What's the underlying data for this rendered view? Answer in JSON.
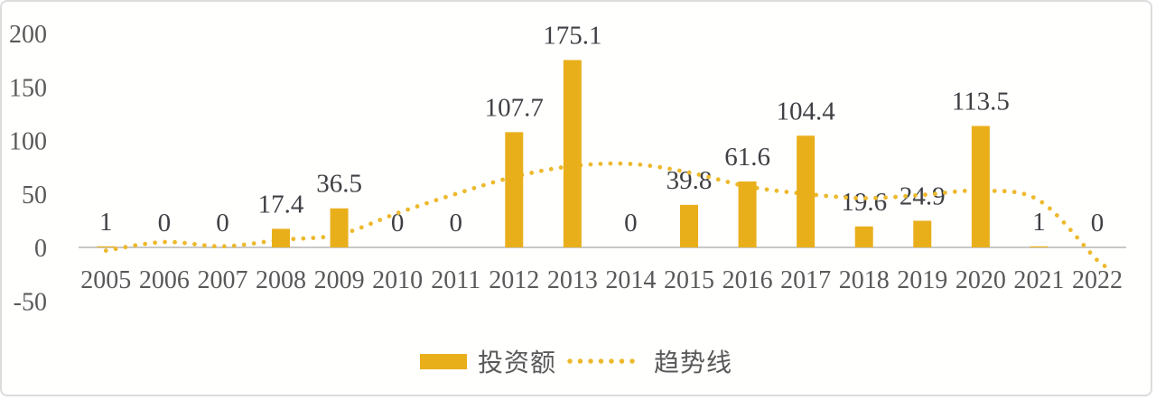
{
  "chart_data": {
    "type": "bar",
    "title": "",
    "xlabel": "",
    "ylabel": "",
    "categories": [
      "2005",
      "2006",
      "2007",
      "2008",
      "2009",
      "2010",
      "2011",
      "2012",
      "2013",
      "2014",
      "2015",
      "2016",
      "2017",
      "2018",
      "2019",
      "2020",
      "2021",
      "2022"
    ],
    "series": [
      {
        "name": "投资额",
        "type": "bar",
        "values": [
          1,
          0,
          0,
          17.4,
          36.5,
          0,
          0,
          107.7,
          175.1,
          0,
          39.8,
          61.6,
          104.4,
          19.6,
          24.9,
          113.5,
          1,
          0
        ],
        "data_labels": [
          "1",
          "0",
          "0",
          "17.4",
          "36.5",
          "0",
          "0",
          "107.7",
          "175.1",
          "0",
          "39.8",
          "61.6",
          "104.4",
          "19.6",
          "24.9",
          "113.5",
          "1",
          "0"
        ]
      },
      {
        "name": "趋势线",
        "type": "dotted-line",
        "values": [
          -3,
          5,
          1,
          7,
          12,
          32,
          50,
          66,
          76,
          78,
          70,
          57,
          50,
          46,
          49,
          53,
          44,
          -12
        ]
      }
    ],
    "ylim": [
      -50,
      200
    ],
    "yticks": [
      200,
      150,
      100,
      50,
      0,
      -50
    ],
    "grid": false,
    "legend_position": "bottom",
    "colors": {
      "bar": "#E9AF1B",
      "trend": "#EDB92C",
      "axis_text": "#595959",
      "label_text": "#3F4044",
      "axis_line": "#C8C8C8"
    }
  }
}
